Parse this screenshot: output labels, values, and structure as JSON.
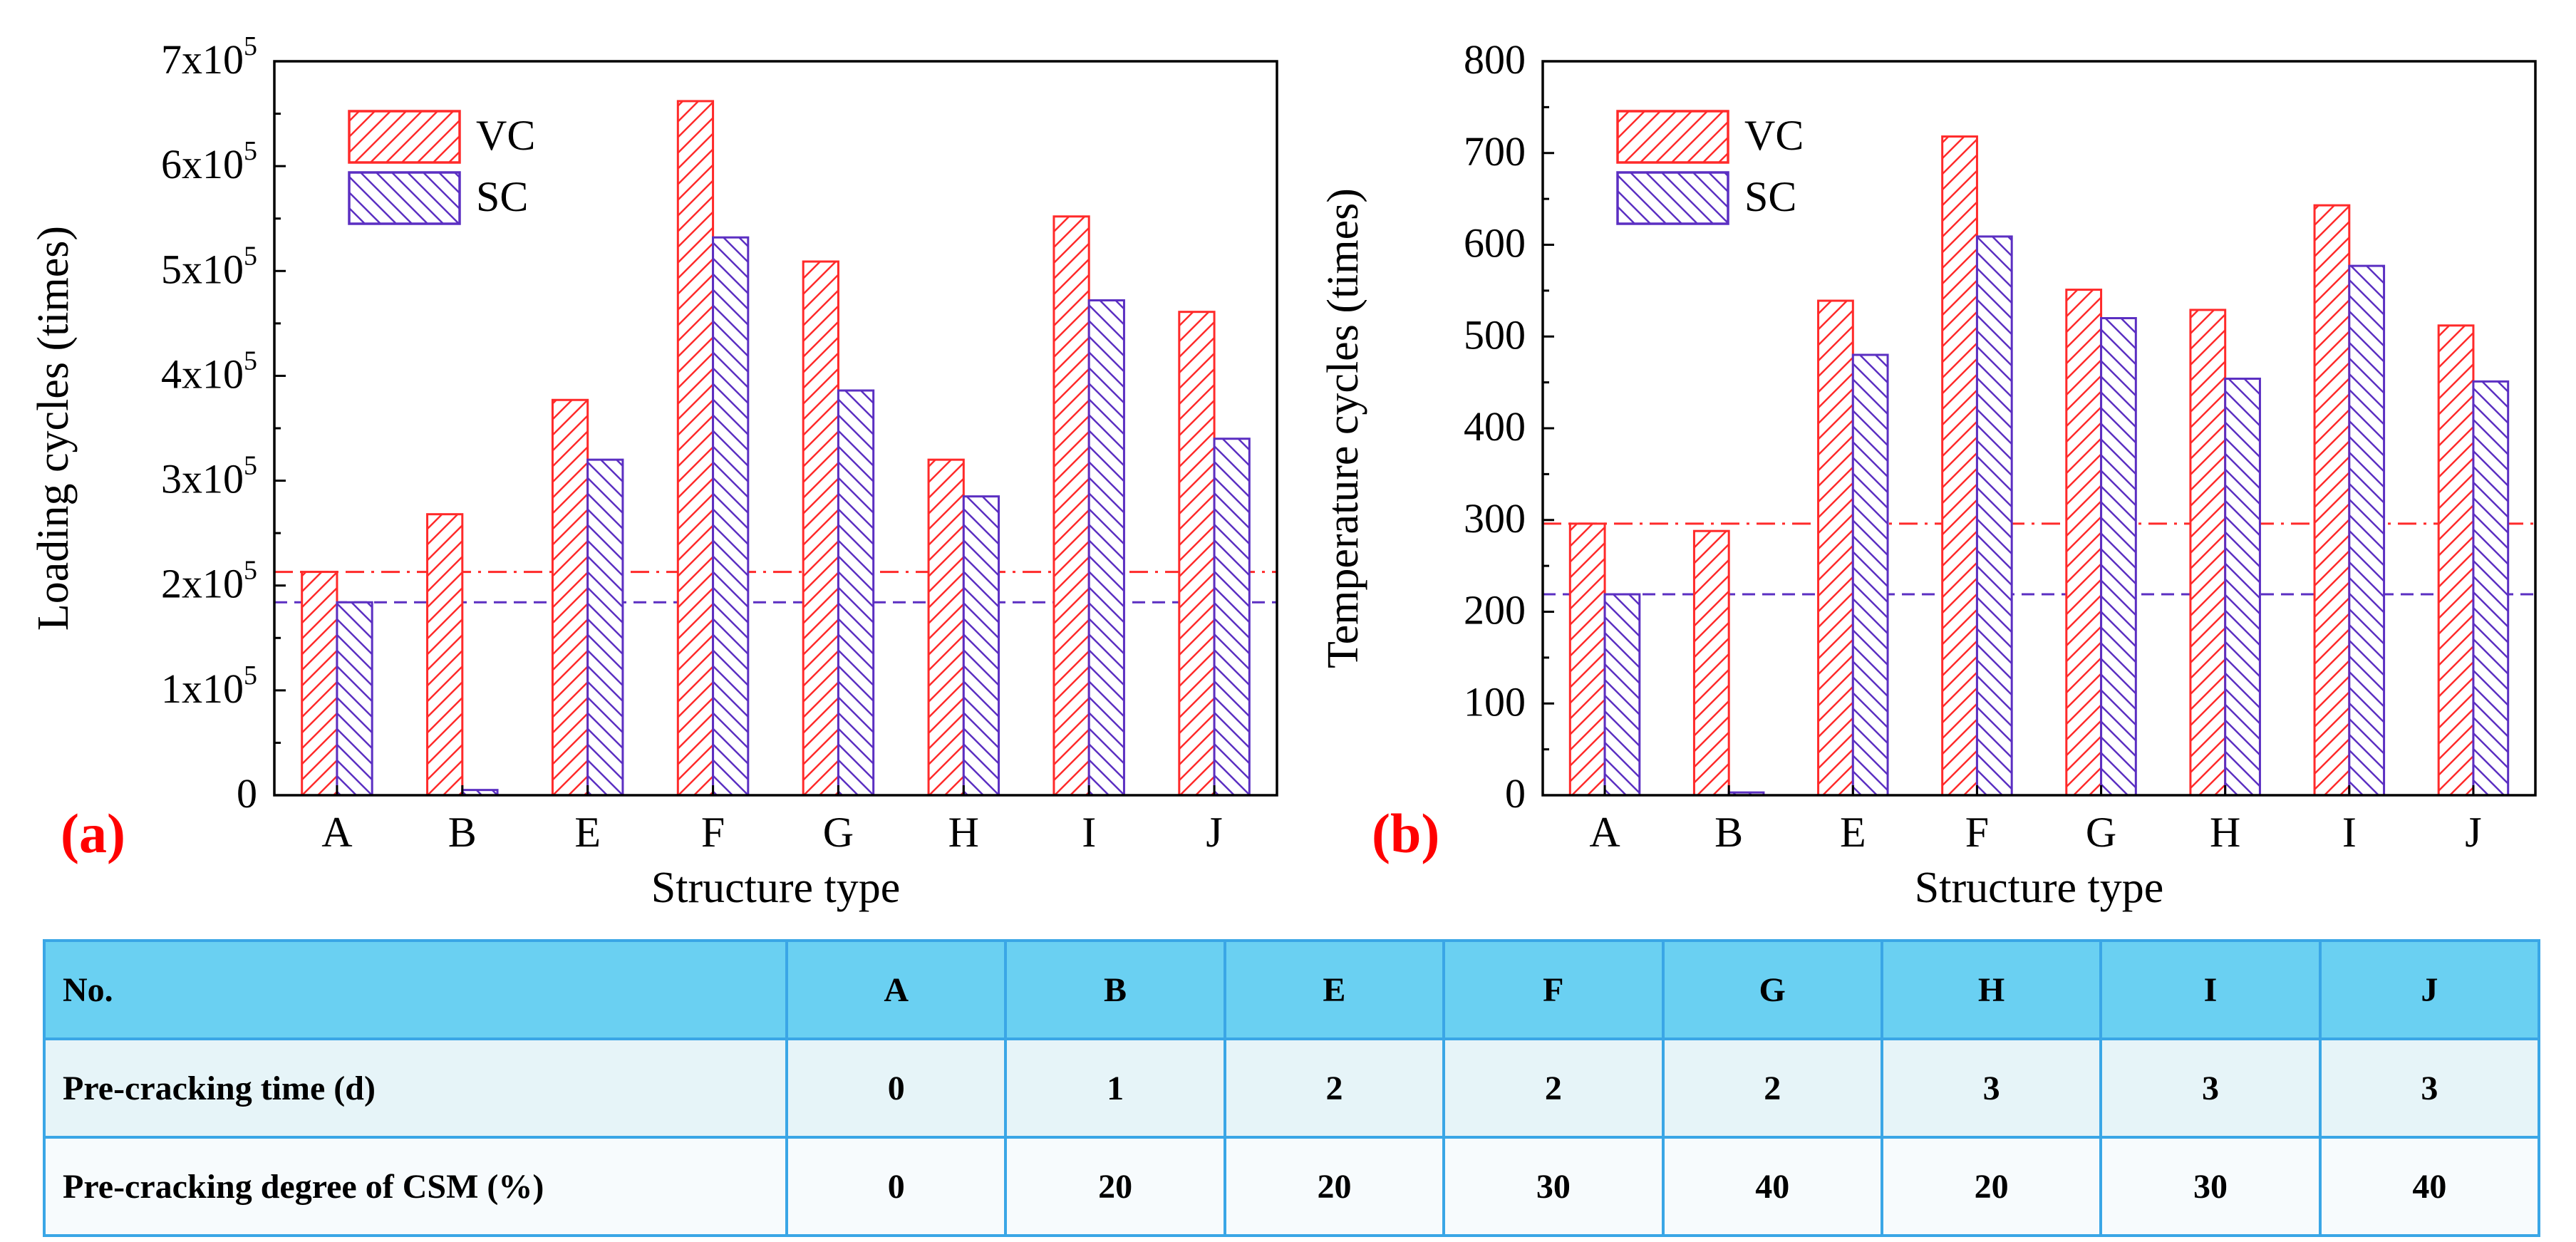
{
  "colors": {
    "vc": "#ff2a2a",
    "sc": "#5b2fc2",
    "vc_ref_line": "#ff2a2a",
    "sc_ref_line": "#5b2fc2",
    "panel_label": "#ff0000",
    "table_header_bg": "#6ad0f2",
    "table_border": "#3aa6e6"
  },
  "chart_data": [
    {
      "type": "bar",
      "panel_label": "(a)",
      "categories": [
        "A",
        "B",
        "E",
        "F",
        "G",
        "H",
        "I",
        "J"
      ],
      "series": [
        {
          "name": "VC",
          "values": [
            213000,
            268000,
            377000,
            662000,
            509000,
            320000,
            552000,
            461000
          ]
        },
        {
          "name": "SC",
          "values": [
            184000,
            5000,
            320000,
            532000,
            386000,
            285000,
            472000,
            340000
          ]
        }
      ],
      "reference_lines": [
        {
          "series": "VC",
          "value": 213000,
          "style": "dash-dot"
        },
        {
          "series": "SC",
          "value": 184000,
          "style": "dashed"
        }
      ],
      "xlabel": "Structure type",
      "ylabel": "Loading cycles (times)",
      "ylim": [
        0,
        700000
      ],
      "y_ticks": [
        {
          "value": 0,
          "mantissa": "0",
          "exp": ""
        },
        {
          "value": 100000,
          "mantissa": "1x10",
          "exp": "5"
        },
        {
          "value": 200000,
          "mantissa": "2x10",
          "exp": "5"
        },
        {
          "value": 300000,
          "mantissa": "3x10",
          "exp": "5"
        },
        {
          "value": 400000,
          "mantissa": "4x10",
          "exp": "5"
        },
        {
          "value": 500000,
          "mantissa": "5x10",
          "exp": "5"
        },
        {
          "value": 600000,
          "mantissa": "6x10",
          "exp": "5"
        },
        {
          "value": 700000,
          "mantissa": "7x10",
          "exp": "5"
        }
      ],
      "legend": [
        "VC",
        "SC"
      ],
      "legend_position": "top-left"
    },
    {
      "type": "bar",
      "panel_label": "(b)",
      "categories": [
        "A",
        "B",
        "E",
        "F",
        "G",
        "H",
        "I",
        "J"
      ],
      "series": [
        {
          "name": "VC",
          "values": [
            296,
            288,
            539,
            718,
            551,
            529,
            643,
            512
          ]
        },
        {
          "name": "SC",
          "values": [
            219,
            3,
            480,
            609,
            520,
            454,
            577,
            451
          ]
        }
      ],
      "reference_lines": [
        {
          "series": "VC",
          "value": 296,
          "style": "dash-dot"
        },
        {
          "series": "SC",
          "value": 219,
          "style": "dashed"
        }
      ],
      "xlabel": "Structure type",
      "ylabel": "Temperature cycles (times)",
      "ylim": [
        0,
        800
      ],
      "y_ticks": [
        {
          "value": 0,
          "mantissa": "0",
          "exp": ""
        },
        {
          "value": 100,
          "mantissa": "100",
          "exp": ""
        },
        {
          "value": 200,
          "mantissa": "200",
          "exp": ""
        },
        {
          "value": 300,
          "mantissa": "300",
          "exp": ""
        },
        {
          "value": 400,
          "mantissa": "400",
          "exp": ""
        },
        {
          "value": 500,
          "mantissa": "500",
          "exp": ""
        },
        {
          "value": 600,
          "mantissa": "600",
          "exp": ""
        },
        {
          "value": 700,
          "mantissa": "700",
          "exp": ""
        },
        {
          "value": 800,
          "mantissa": "800",
          "exp": ""
        }
      ],
      "legend": [
        "VC",
        "SC"
      ],
      "legend_position": "top-left"
    }
  ],
  "table": {
    "header": [
      "No.",
      "A",
      "B",
      "E",
      "F",
      "G",
      "H",
      "I",
      "J"
    ],
    "rows": [
      [
        "Pre-cracking time  (d)",
        "0",
        "1",
        "2",
        "2",
        "2",
        "3",
        "3",
        "3"
      ],
      [
        "Pre-cracking degree of  CSM (%)",
        "0",
        "20",
        "20",
        "30",
        "40",
        "20",
        "30",
        "40"
      ]
    ]
  }
}
